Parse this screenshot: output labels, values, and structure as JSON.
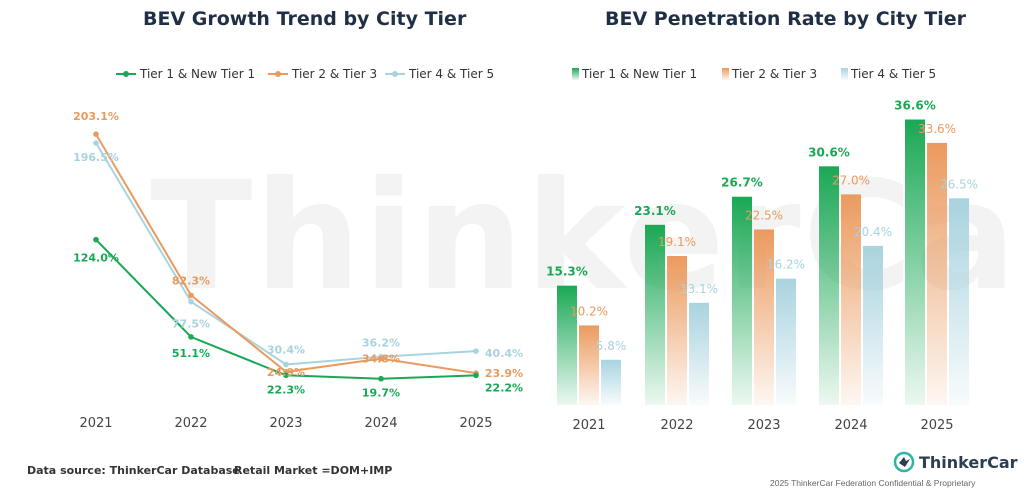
{
  "watermark": "ThinkerCar",
  "chart_data": [
    {
      "type": "line",
      "title": "BEV Growth Trend by City Tier",
      "categories": [
        "2021",
        "2022",
        "2023",
        "2024",
        "2025"
      ],
      "series": [
        {
          "name": "Tier 1 & New Tier 1",
          "color": "#1aa855",
          "values": [
            124.0,
            51.1,
            22.3,
            19.7,
            22.2
          ],
          "labels": [
            "124.0%",
            "51.1%",
            "22.3%",
            "19.7%",
            "22.2%"
          ]
        },
        {
          "name": "Tier 2 & Tier 3",
          "color": "#eb9a5e",
          "values": [
            203.1,
            82.3,
            24.9,
            34.8,
            23.9
          ],
          "labels": [
            "203.1%",
            "82.3%",
            "24.9%",
            "34.8%",
            "23.9%"
          ]
        },
        {
          "name": "Tier 4 & Tier 5",
          "color": "#a8d3df",
          "values": [
            196.5,
            77.5,
            30.4,
            36.2,
            40.4
          ],
          "labels": [
            "196.5%",
            "77.5%",
            "30.4%",
            "36.2%",
            "40.4%"
          ]
        }
      ],
      "ylim": [
        0,
        225
      ],
      "legend": "top",
      "grid": false
    },
    {
      "type": "bar",
      "title": "BEV Penetration Rate by City Tier",
      "categories": [
        "2021",
        "2022",
        "2023",
        "2024",
        "2025"
      ],
      "series": [
        {
          "name": "Tier 1 & New Tier 1",
          "color": "#1aa855",
          "values": [
            15.3,
            23.1,
            26.7,
            30.6,
            36.6
          ],
          "labels": [
            "15.3%",
            "23.1%",
            "26.7%",
            "30.6%",
            "36.6%"
          ]
        },
        {
          "name": "Tier 2 & Tier 3",
          "color": "#eb9a5e",
          "values": [
            10.2,
            19.1,
            22.5,
            27.0,
            33.6
          ],
          "labels": [
            "10.2%",
            "19.1%",
            "22.5%",
            "27.0%",
            "33.6%"
          ]
        },
        {
          "name": "Tier 4 & Tier 5",
          "color": "#a8d3df",
          "values": [
            5.8,
            13.1,
            16.2,
            20.4,
            26.5
          ],
          "labels": [
            "5.8%",
            "13.1%",
            "16.2%",
            "20.4%",
            "26.5%"
          ]
        }
      ],
      "ylim": [
        0,
        40
      ],
      "legend": "top",
      "grid": false
    }
  ],
  "footer": {
    "source": "Data source: ThinkerCar Database",
    "market": "Retail Market =DOM+IMP",
    "brand": "ThinkerCar",
    "copyright": "2025 ThinkerCar Federation Confidential & Proprietary"
  }
}
